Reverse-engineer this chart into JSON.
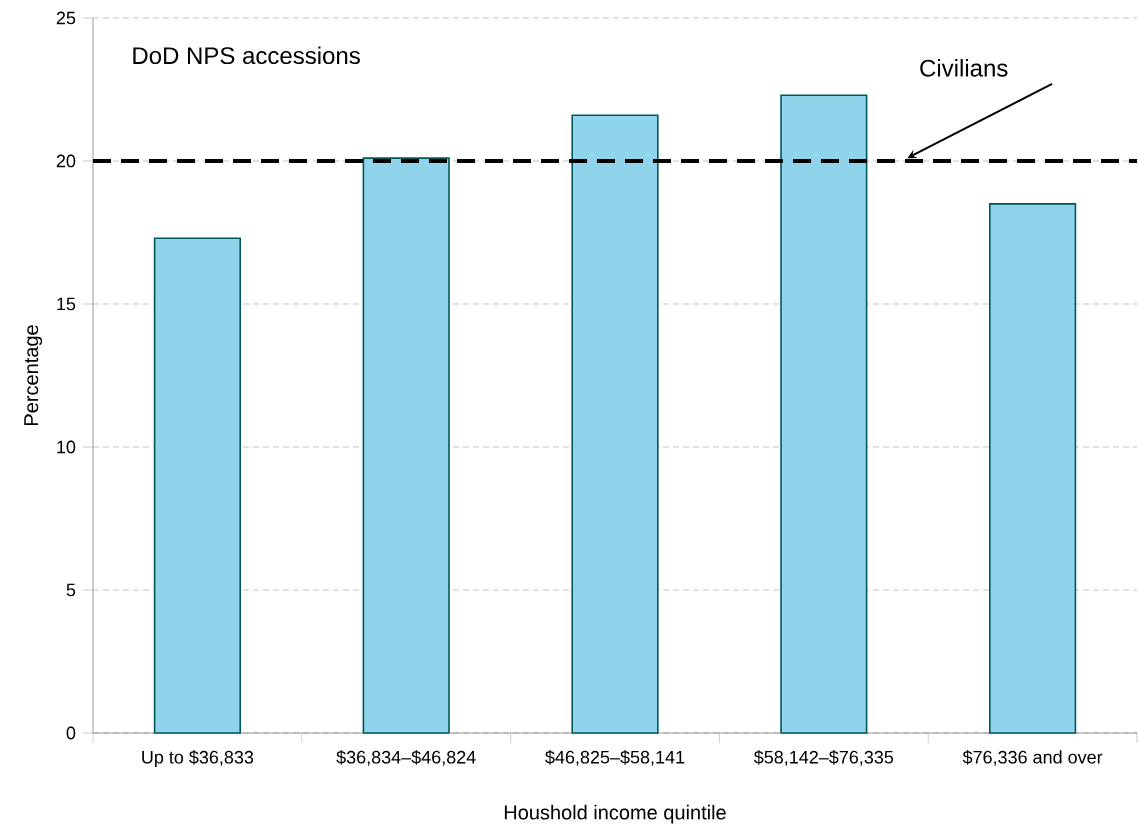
{
  "chart_data": {
    "type": "bar",
    "xlabel": "Houshold income quintile",
    "ylabel": "Percentage",
    "categories": [
      "Up to $36,833",
      "$36,834–$46,824",
      "$46,825–$58,141",
      "$58,142–$76,335",
      "$76,336 and over"
    ],
    "values": [
      17.3,
      20.1,
      21.6,
      22.3,
      18.5
    ],
    "color": "#8fd4ea",
    "ylim": [
      0,
      25
    ],
    "yticks": [
      0,
      5,
      10,
      15,
      20,
      25
    ],
    "grid": "y",
    "ref_lines": [
      {
        "axis": "y",
        "value": 20,
        "label": "Civilians",
        "color": "#000000",
        "line_style": "dashed"
      }
    ],
    "annotations": [
      "DoD NPS accessions"
    ]
  }
}
